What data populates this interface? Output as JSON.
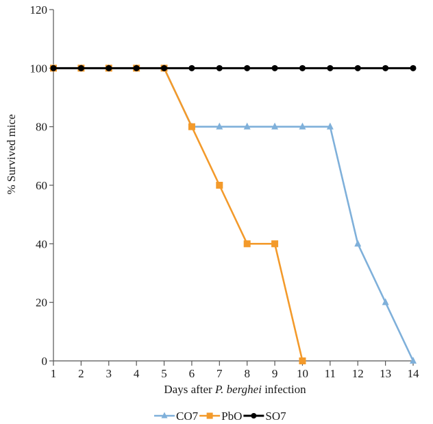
{
  "chart_data": {
    "type": "line",
    "x": [
      1,
      2,
      3,
      4,
      5,
      6,
      7,
      8,
      9,
      10,
      11,
      12,
      13,
      14
    ],
    "xlabel": {
      "prefix": "Days after ",
      "italic": "P. berghei",
      "suffix": " infection"
    },
    "ylabel": "% Survived mice",
    "ylim": [
      0,
      120
    ],
    "yticks": [
      0,
      20,
      40,
      60,
      80,
      100,
      120
    ],
    "grid": false,
    "legend_position": "bottom",
    "series": [
      {
        "name": "CO7",
        "color": "#7fb0da",
        "marker": "triangle",
        "x": [
          1,
          2,
          3,
          4,
          5,
          6,
          7,
          8,
          9,
          10,
          11,
          12,
          13,
          14
        ],
        "values": [
          100,
          100,
          100,
          100,
          100,
          80,
          80,
          80,
          80,
          80,
          80,
          40,
          20,
          0
        ]
      },
      {
        "name": "PbO",
        "color": "#f39a2b",
        "marker": "square",
        "x": [
          1,
          2,
          3,
          4,
          5,
          6,
          7,
          8,
          9,
          10
        ],
        "values": [
          100,
          100,
          100,
          100,
          100,
          80,
          60,
          40,
          40,
          0
        ]
      },
      {
        "name": "SO7",
        "color": "#000000",
        "marker": "circle",
        "x": [
          1,
          2,
          3,
          4,
          5,
          6,
          7,
          8,
          9,
          10,
          11,
          12,
          13,
          14
        ],
        "values": [
          100,
          100,
          100,
          100,
          100,
          100,
          100,
          100,
          100,
          100,
          100,
          100,
          100,
          100
        ]
      }
    ]
  }
}
